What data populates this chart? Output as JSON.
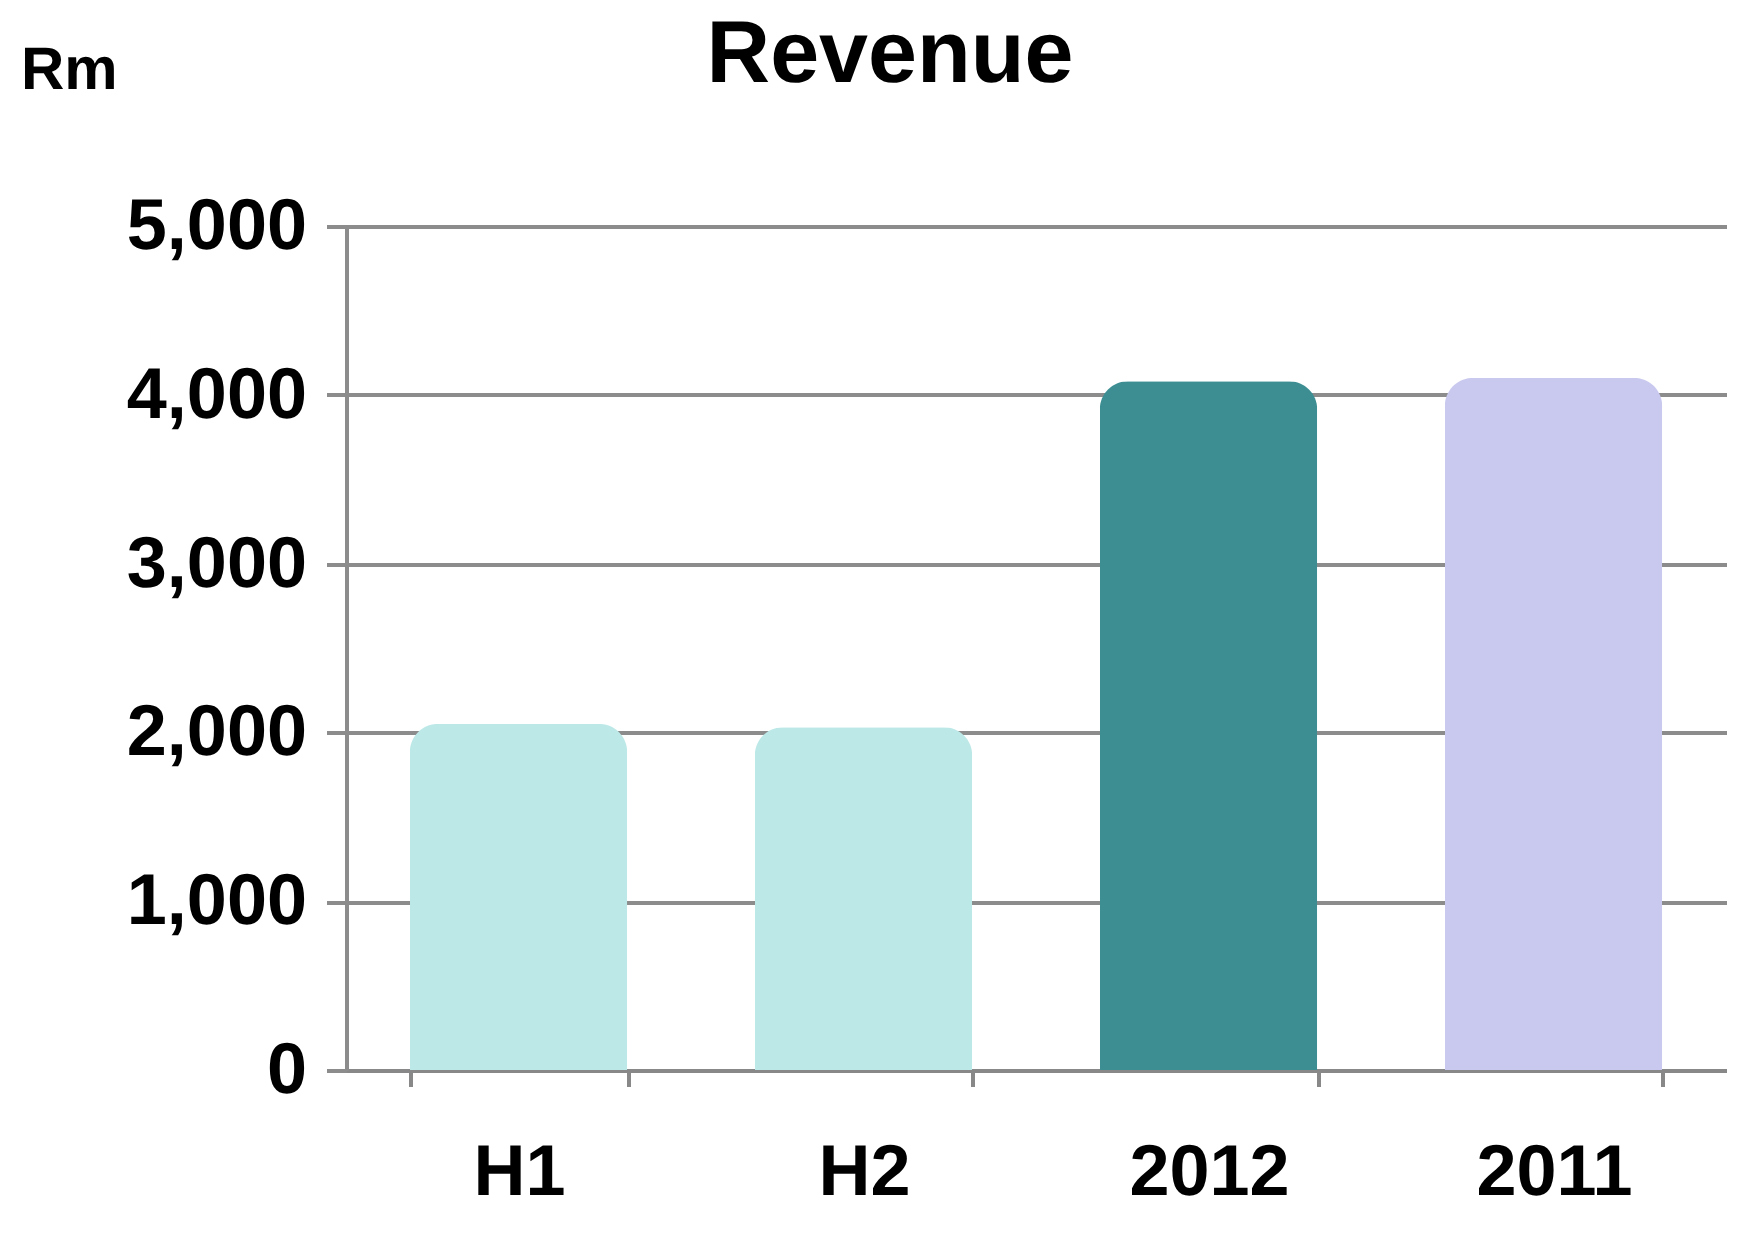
{
  "chart_data": {
    "type": "bar",
    "title": "Revenue",
    "ylabel": "Rm",
    "categories": [
      "H1",
      "H2",
      "2012",
      "2011"
    ],
    "values": [
      2050,
      2030,
      4080,
      4100
    ],
    "colors": [
      "#bde8e8",
      "#bde8e8",
      "#3d8e93",
      "#c9c9ef"
    ],
    "ylim": [
      0,
      5000
    ],
    "yticks": [
      0,
      {
        "value": 1000,
        "label": "1,000"
      },
      {
        "value": 2000,
        "label": "2,000"
      },
      {
        "value": 3000,
        "label": "3,000"
      },
      {
        "value": 4000,
        "label": "4,000"
      },
      {
        "value": 5000,
        "label": "5,000"
      }
    ],
    "grid": "y"
  }
}
